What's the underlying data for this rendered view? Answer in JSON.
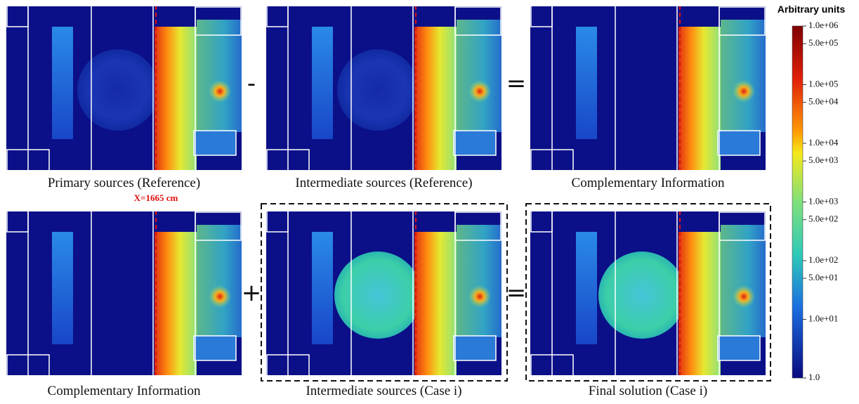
{
  "panels": [
    {
      "caption": "Primary sources (Reference)"
    },
    {
      "caption": "Intermediate sources (Reference)"
    },
    {
      "caption": "Complementary Information"
    },
    {
      "caption": "Complementary Information"
    },
    {
      "caption": "Intermediate sources (Case i)"
    },
    {
      "caption": "Final solution (Case i)"
    }
  ],
  "operators": [
    "-",
    "=",
    "+",
    "="
  ],
  "annotation": "X=1665 cm",
  "colorbar": {
    "title": "Arbitrary units",
    "log_scale": true,
    "range": [
      1,
      1000000
    ],
    "ticks": [
      {
        "value": 1000000,
        "label": "1.0e+06"
      },
      {
        "value": 500000,
        "label": "5.0e+05"
      },
      {
        "value": 100000,
        "label": "1.0e+05"
      },
      {
        "value": 50000,
        "label": "5.0e+04"
      },
      {
        "value": 10000,
        "label": "1.0e+04"
      },
      {
        "value": 5000,
        "label": "5.0e+03"
      },
      {
        "value": 1000,
        "label": "1.0e+03"
      },
      {
        "value": 500,
        "label": "5.0e+02"
      },
      {
        "value": 100,
        "label": "1.0e+02"
      },
      {
        "value": 50,
        "label": "5.0e+01"
      },
      {
        "value": 10,
        "label": "1.0e+01"
      },
      {
        "value": 1,
        "label": "1.0"
      }
    ]
  }
}
